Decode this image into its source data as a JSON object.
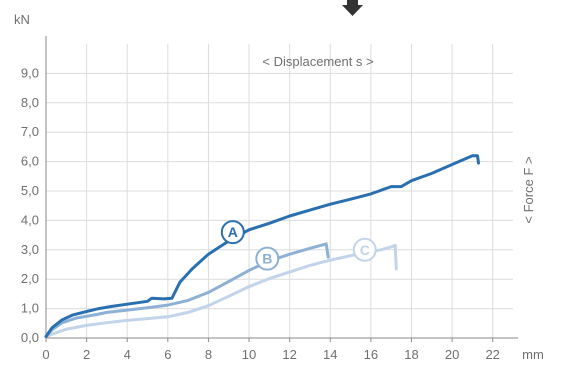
{
  "indicator": {
    "icon": "arrow-down-icon",
    "color": "#333333"
  },
  "chart_data": {
    "type": "line",
    "y_unit": "kN",
    "x_unit": "mm",
    "x_annotation": "< Displacement s >",
    "y_annotation": "< Force F >",
    "xlim": [
      0,
      23
    ],
    "ylim": [
      0,
      10
    ],
    "x_ticks": [
      "0",
      "2",
      "4",
      "6",
      "8",
      "10",
      "12",
      "14",
      "16",
      "18",
      "20",
      "22"
    ],
    "y_ticks": [
      "0,0",
      "1,0",
      "2,0",
      "3,0",
      "4,0",
      "5,0",
      "6,0",
      "7,0",
      "8,0",
      "9,0"
    ],
    "grid": true,
    "series": [
      {
        "name": "A",
        "color": "#2a6fb0",
        "label_at": [
          9.2,
          3.6
        ],
        "points": [
          [
            0,
            0.05
          ],
          [
            0.3,
            0.35
          ],
          [
            0.8,
            0.62
          ],
          [
            1.3,
            0.78
          ],
          [
            2,
            0.9
          ],
          [
            2.6,
            1.0
          ],
          [
            3.2,
            1.07
          ],
          [
            4,
            1.15
          ],
          [
            5,
            1.25
          ],
          [
            5.2,
            1.35
          ],
          [
            5.8,
            1.33
          ],
          [
            6.2,
            1.35
          ],
          [
            6.6,
            1.9
          ],
          [
            7.2,
            2.35
          ],
          [
            8,
            2.85
          ],
          [
            9,
            3.3
          ],
          [
            10,
            3.68
          ],
          [
            11,
            3.9
          ],
          [
            12,
            4.15
          ],
          [
            13,
            4.35
          ],
          [
            14,
            4.55
          ],
          [
            15,
            4.72
          ],
          [
            16,
            4.9
          ],
          [
            17,
            5.15
          ],
          [
            17.5,
            5.15
          ],
          [
            18,
            5.35
          ],
          [
            19,
            5.6
          ],
          [
            20,
            5.9
          ],
          [
            21,
            6.2
          ],
          [
            21.25,
            6.2
          ],
          [
            21.3,
            5.95
          ]
        ]
      },
      {
        "name": "B",
        "color": "#8cb0d6",
        "label_at": [
          10.9,
          2.7
        ],
        "points": [
          [
            0,
            0.05
          ],
          [
            0.3,
            0.28
          ],
          [
            0.8,
            0.52
          ],
          [
            1.5,
            0.68
          ],
          [
            2.5,
            0.8
          ],
          [
            3,
            0.87
          ],
          [
            4,
            0.95
          ],
          [
            5,
            1.03
          ],
          [
            6,
            1.12
          ],
          [
            7,
            1.28
          ],
          [
            8,
            1.55
          ],
          [
            9,
            1.92
          ],
          [
            10,
            2.3
          ],
          [
            11,
            2.62
          ],
          [
            12,
            2.85
          ],
          [
            13,
            3.05
          ],
          [
            13.8,
            3.2
          ],
          [
            13.9,
            2.75
          ]
        ]
      },
      {
        "name": "C",
        "color": "#c2d4ea",
        "label_at": [
          15.7,
          3.0
        ],
        "points": [
          [
            0,
            0.05
          ],
          [
            0.5,
            0.18
          ],
          [
            1,
            0.3
          ],
          [
            2,
            0.43
          ],
          [
            3,
            0.52
          ],
          [
            4,
            0.6
          ],
          [
            5,
            0.66
          ],
          [
            6,
            0.72
          ],
          [
            7,
            0.87
          ],
          [
            8,
            1.1
          ],
          [
            9,
            1.42
          ],
          [
            10,
            1.75
          ],
          [
            11,
            2.02
          ],
          [
            12,
            2.25
          ],
          [
            13,
            2.47
          ],
          [
            14,
            2.65
          ],
          [
            15,
            2.8
          ],
          [
            16,
            2.95
          ],
          [
            16.5,
            3.0
          ],
          [
            17,
            3.1
          ],
          [
            17.2,
            3.15
          ],
          [
            17.25,
            2.35
          ]
        ]
      }
    ]
  }
}
